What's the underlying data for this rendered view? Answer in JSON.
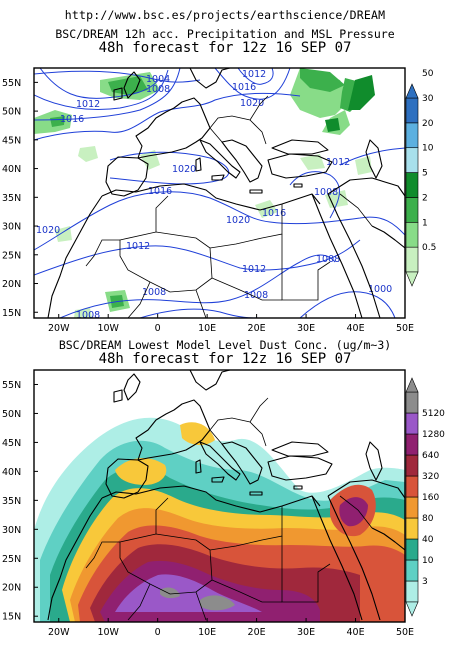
{
  "source_url": "http://www.bsc.es/projects/earthscience/DREAM",
  "colors": {
    "isobar": "#2040d8",
    "precip": [
      "#ffffff",
      "#c8f0c0",
      "#88dc88",
      "#3cb04c",
      "#108c2c",
      "#a8e0ec",
      "#5cb0e0",
      "#2e70c0"
    ],
    "dust": [
      "#ffffff",
      "#aeeee6",
      "#5fd0c4",
      "#2aaa8c",
      "#f8c83a",
      "#f09830",
      "#d8543a",
      "#a0283c",
      "#902070",
      "#9a58c8",
      "#8c8c8c"
    ]
  },
  "maps": [
    {
      "title_line1": "BSC/DREAM 12h acc. Precipitation and MSL Pressure",
      "title_line2": "48h forecast for 12z 16 SEP 07",
      "isobar_labels": [
        "1012",
        "1004",
        "1008",
        "1016",
        "1012",
        "1016",
        "1020",
        "1020",
        "1016",
        "1012",
        "1008",
        "1020",
        "1016",
        "1012",
        "1008",
        "1004",
        "1020",
        "1012",
        "1008",
        "1008",
        "1012",
        "1008",
        "1000",
        "1008"
      ],
      "colorbar_labels": [
        "0.5",
        "1",
        "2",
        "5",
        "10",
        "20",
        "30",
        "50"
      ]
    },
    {
      "title_line1": "BSC/DREAM Lowest Model Level Dust Conc. (ug/m~3)",
      "title_line2": "48h forecast for 12z 16 SEP 07",
      "colorbar_labels": [
        "3",
        "10",
        "40",
        "80",
        "160",
        "320",
        "640",
        "1280",
        "5120"
      ]
    }
  ],
  "axes": {
    "lat_labels": [
      "15N",
      "20N",
      "25N",
      "30N",
      "35N",
      "40N",
      "45N",
      "50N",
      "55N"
    ],
    "lon_labels": [
      "20W",
      "10W",
      "0",
      "10E",
      "20E",
      "30E",
      "40E",
      "50E"
    ]
  }
}
